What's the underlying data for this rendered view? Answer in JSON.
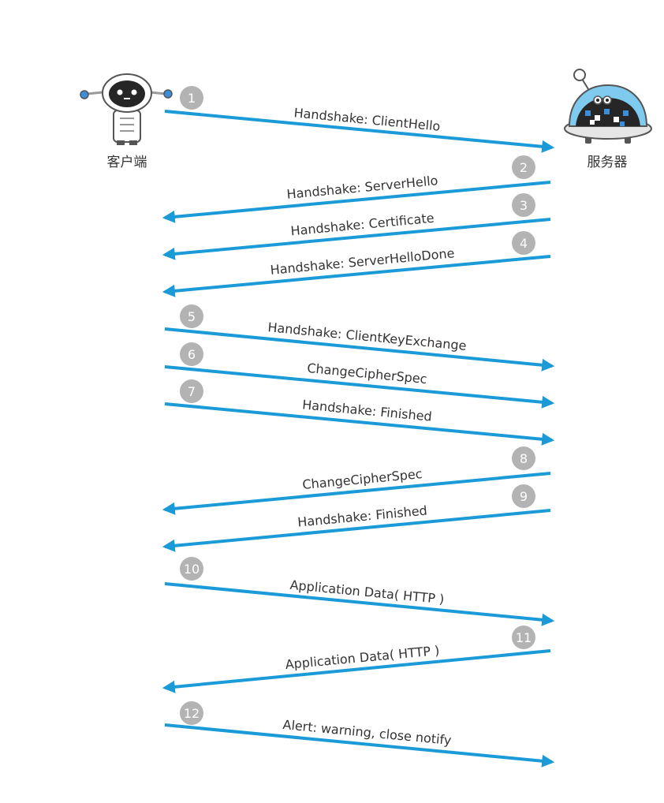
{
  "parties": {
    "client": {
      "label": "客户端",
      "icon": "client-robot-icon"
    },
    "server": {
      "label": "服务器",
      "icon": "server-robot-icon"
    }
  },
  "colors": {
    "arrow": "#1b9ad8",
    "step_badge": "#b3b3b3",
    "text": "#333333",
    "server_dome": "#7ecbef",
    "robot_dark": "#262626",
    "robot_accent": "#3a8fd8"
  },
  "messages": [
    {
      "step": "1",
      "label": "Handshake: ClientHello",
      "direction": "to_server"
    },
    {
      "step": "2",
      "label": "Handshake: ServerHello",
      "direction": "to_client"
    },
    {
      "step": "3",
      "label": "Handshake: Certificate",
      "direction": "to_client"
    },
    {
      "step": "4",
      "label": "Handshake: ServerHelloDone",
      "direction": "to_client"
    },
    {
      "step": "5",
      "label": "Handshake: ClientKeyExchange",
      "direction": "to_server"
    },
    {
      "step": "6",
      "label": "ChangeCipherSpec",
      "direction": "to_server"
    },
    {
      "step": "7",
      "label": "Handshake: Finished",
      "direction": "to_server"
    },
    {
      "step": "8",
      "label": "ChangeCipherSpec",
      "direction": "to_client"
    },
    {
      "step": "9",
      "label": "Handshake: Finished",
      "direction": "to_client"
    },
    {
      "step": "10",
      "label": "Application Data( HTTP )",
      "direction": "to_server"
    },
    {
      "step": "11",
      "label": "Application Data( HTTP )",
      "direction": "to_client"
    },
    {
      "step": "12",
      "label": "Alert: warning, close notify",
      "direction": "to_server"
    }
  ]
}
